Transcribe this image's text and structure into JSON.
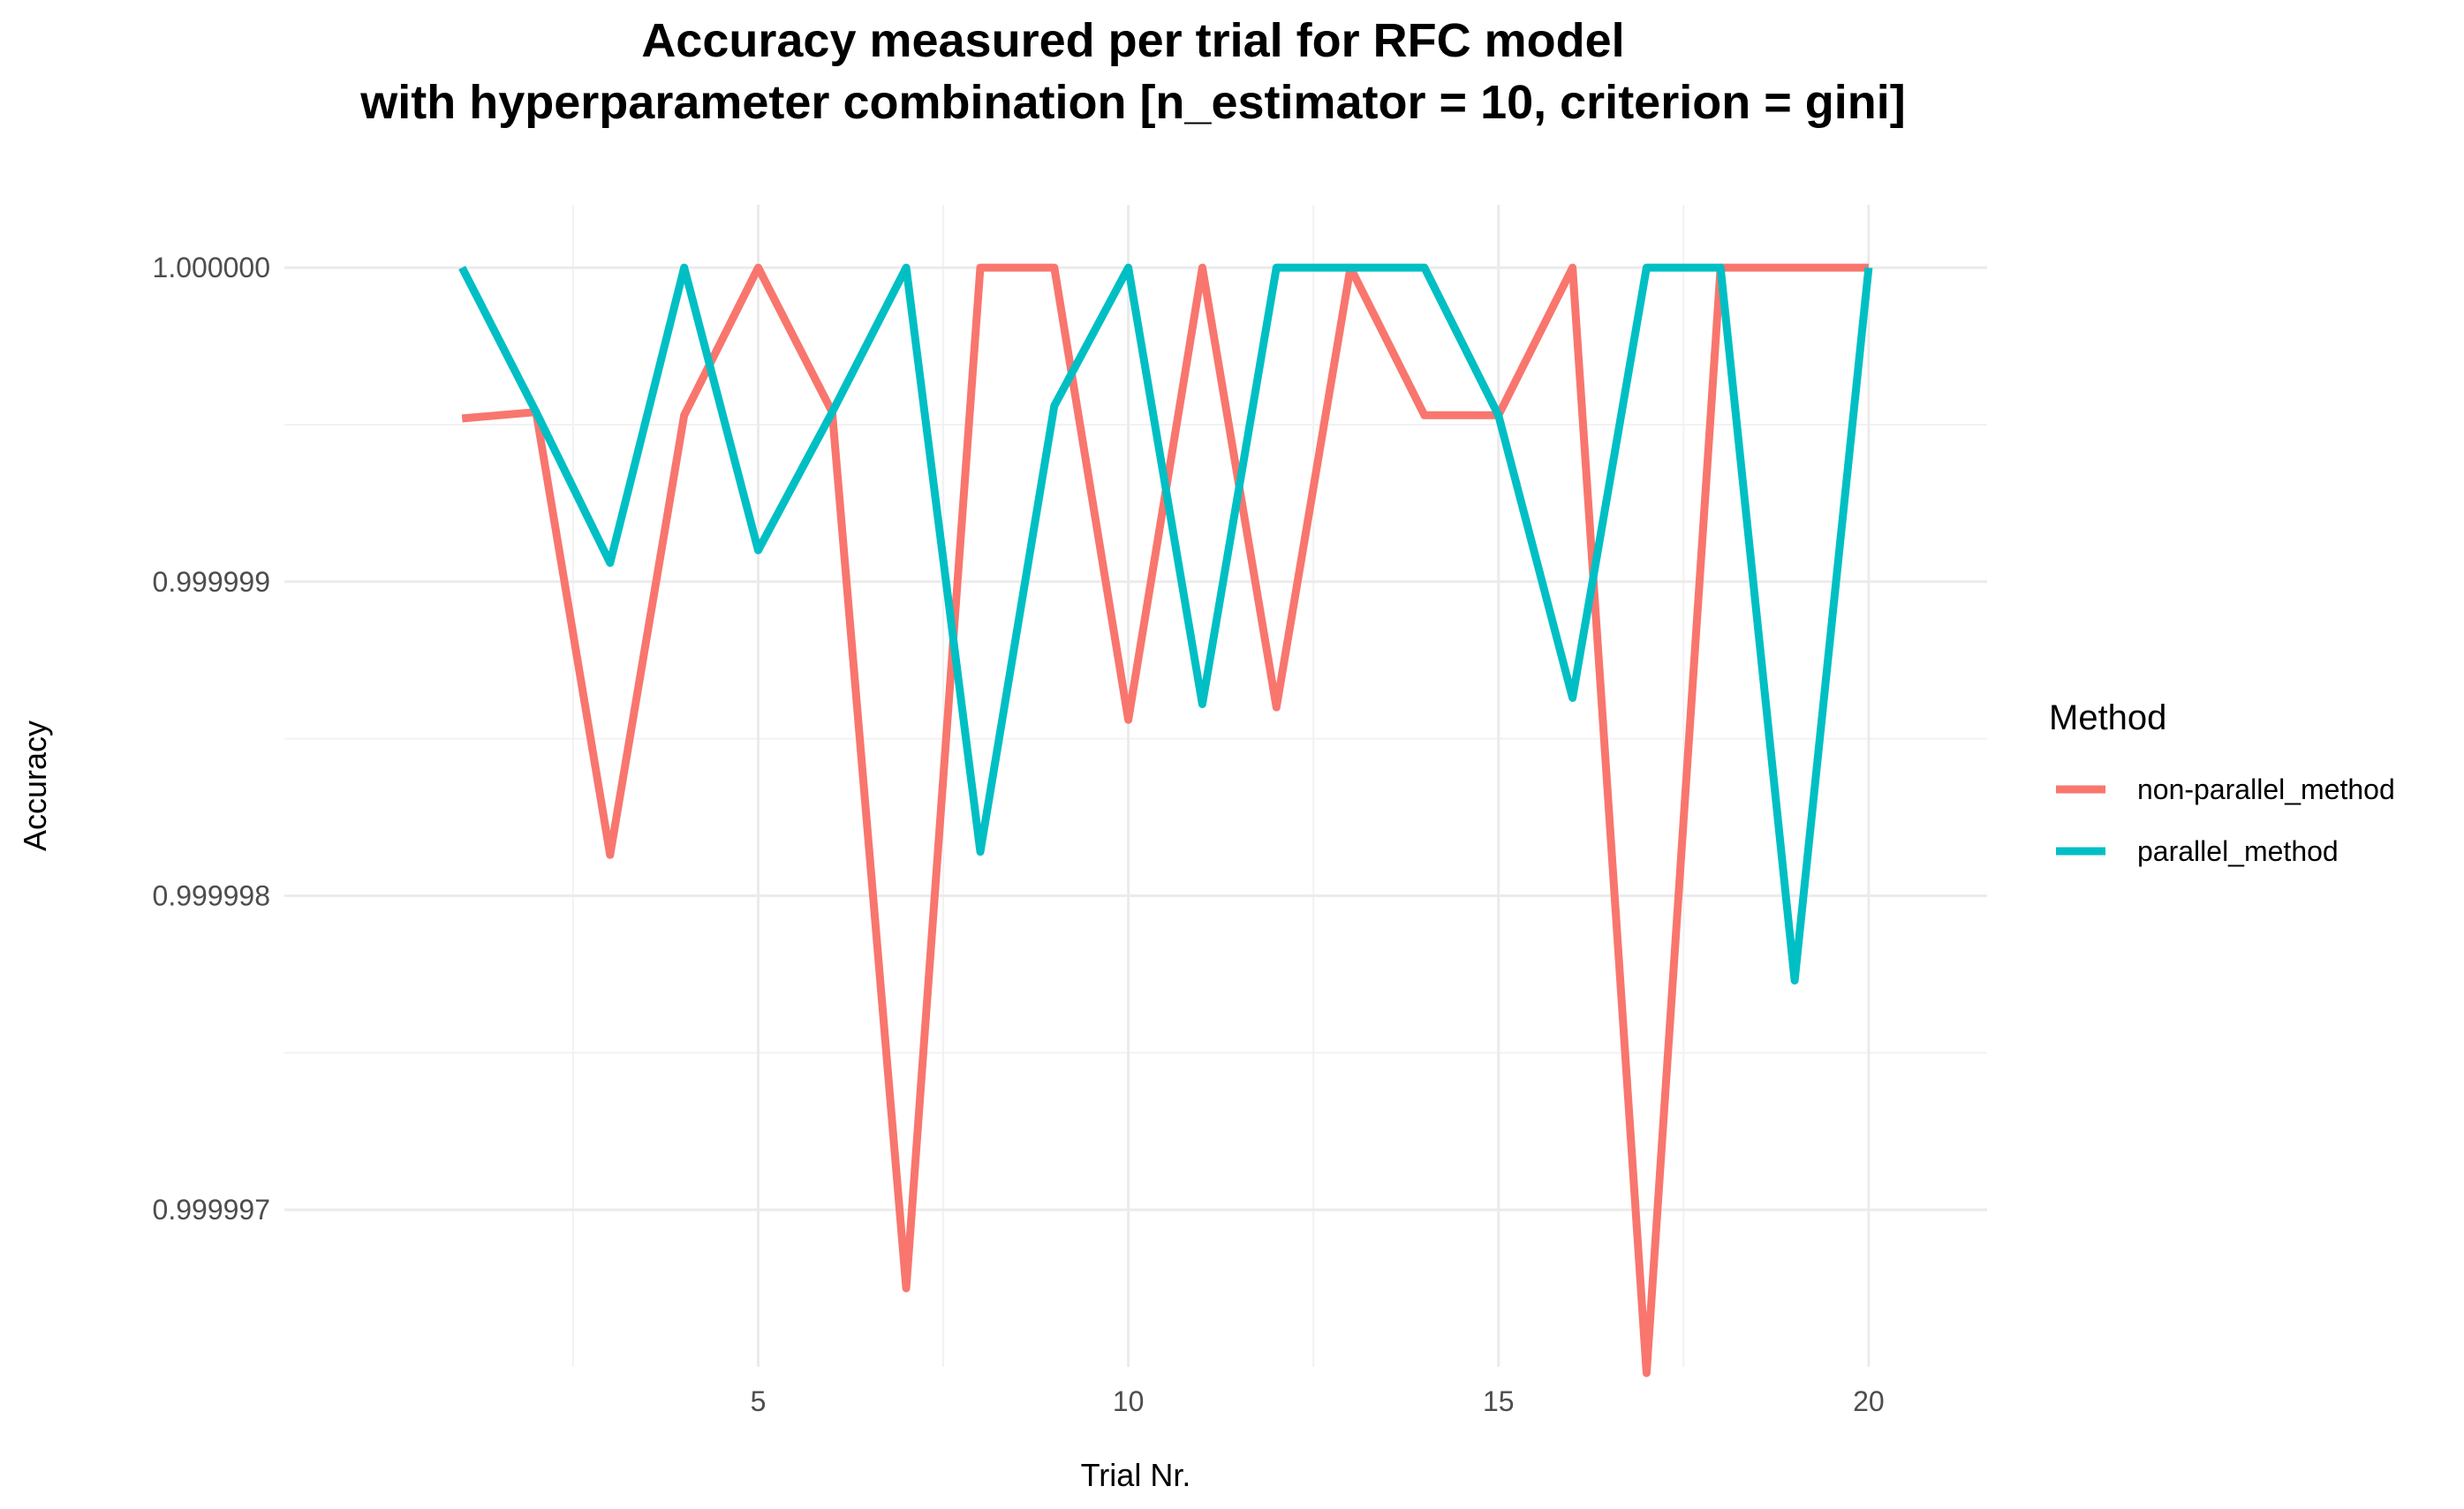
{
  "chart_data": {
    "type": "line",
    "title": "Accuracy measured per trial for RFC model",
    "subtitle": "with hyperparameter combination [n_estimator = 10, criterion = gini]",
    "xlabel": "Trial Nr.",
    "ylabel": "Accuracy",
    "x": [
      1,
      2,
      3,
      4,
      5,
      6,
      7,
      8,
      9,
      10,
      11,
      12,
      13,
      14,
      15,
      16,
      17,
      18,
      19,
      20
    ],
    "xlim": [
      -1.4,
      21.6
    ],
    "ylim": [
      0.9999965,
      1.0000002
    ],
    "x_ticks": [
      5,
      10,
      15,
      20
    ],
    "x_tick_labels": [
      "5",
      "10",
      "15",
      "20"
    ],
    "y_ticks": [
      0.999997,
      0.999998,
      0.999999,
      1.0
    ],
    "y_tick_labels": [
      "0.999997",
      "0.999998",
      "0.999999",
      "1.000000"
    ],
    "grid": true,
    "legend": {
      "title": "Method",
      "position": "right"
    },
    "series": [
      {
        "name": "non-parallel_method",
        "color": "#F8766D",
        "values": [
          0.99999952,
          0.99999954,
          0.99999813,
          0.99999953,
          1.0,
          0.99999954,
          0.99999675,
          1.0,
          1.0,
          0.99999856,
          1.0,
          0.9999986,
          1.0,
          0.99999953,
          0.99999953,
          1.0,
          0.99999648,
          1.0,
          1.0,
          1.0
        ]
      },
      {
        "name": "parallel_method",
        "color": "#00BFC4",
        "values": [
          1.0,
          0.99999954,
          0.99999906,
          1.0,
          0.9999991,
          0.99999954,
          1.0,
          0.99999814,
          0.99999956,
          1.0,
          0.99999861,
          1.0,
          1.0,
          1.0,
          0.99999953,
          0.99999863,
          1.0,
          1.0,
          0.99999773,
          1.0
        ]
      }
    ]
  }
}
